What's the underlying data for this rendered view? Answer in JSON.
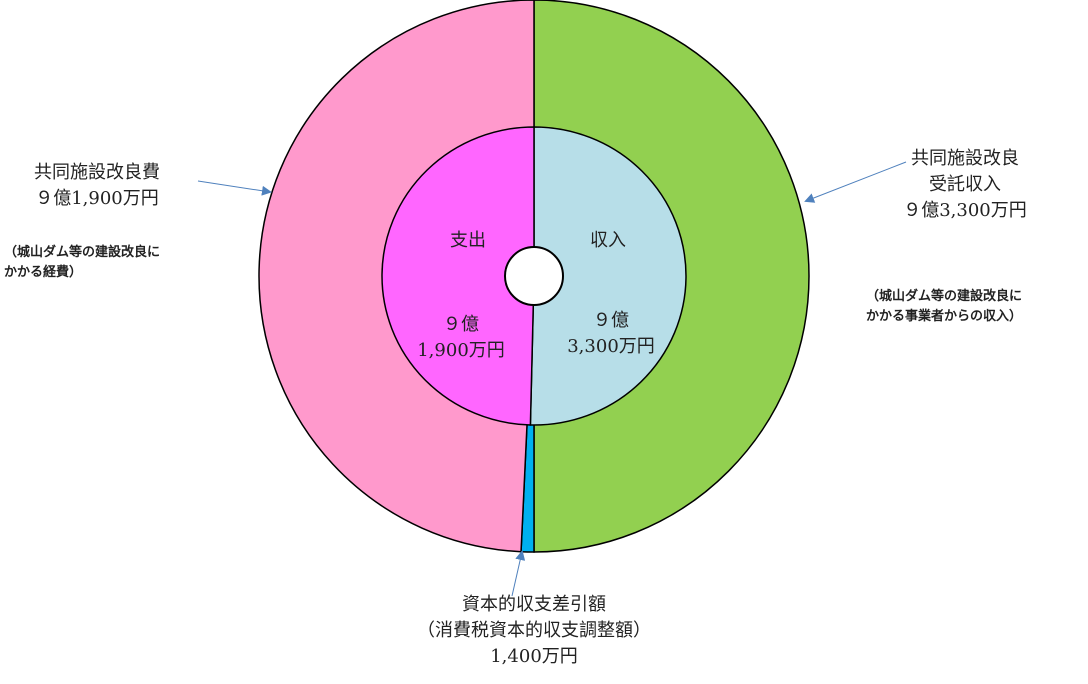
{
  "chart_data": {
    "type": "pie",
    "title": "",
    "rings": [
      {
        "ring": "outer",
        "slices": [
          {
            "name": "共同施設改良受託収入",
            "value": 93300,
            "unit": "万円",
            "color": "#92d050"
          },
          {
            "name": "資本的収支差引額",
            "value": 1400,
            "unit": "万円",
            "color": "#00b0f0"
          },
          {
            "name": "共同施設改良費",
            "value": 91900,
            "unit": "万円",
            "color": "#ff99cc"
          }
        ]
      },
      {
        "ring": "inner",
        "slices": [
          {
            "name": "収入",
            "value": 93300,
            "unit": "万円",
            "color": "#b7dee8"
          },
          {
            "name": "支出",
            "value": 91900,
            "unit": "万円",
            "color": "#ff66ff"
          }
        ]
      }
    ]
  },
  "labels": {
    "left": {
      "lines": [
        "共同施設改良費",
        "９億1,900万円"
      ],
      "note_lines": [
        "（城山ダム等の建設改良に",
        "かかる経費）"
      ]
    },
    "right": {
      "lines": [
        "共同施設改良",
        "受託収入",
        "９億3,300万円"
      ],
      "note_lines": [
        "（城山ダム等の建設改良に",
        "かかる事業者からの収入）"
      ]
    },
    "bottom": {
      "lines": [
        "資本的収支差引額",
        "（消費税資本的収支調整額）",
        "1,400万円"
      ]
    },
    "inner_income": {
      "title": "収入",
      "amount_lines": [
        "９億",
        "3,300万円"
      ]
    },
    "inner_expense": {
      "title": "支出",
      "amount_lines": [
        "９億",
        "1,900万円"
      ]
    }
  },
  "colors": {
    "outline": "#000000",
    "arrow": "#4f81bd"
  }
}
